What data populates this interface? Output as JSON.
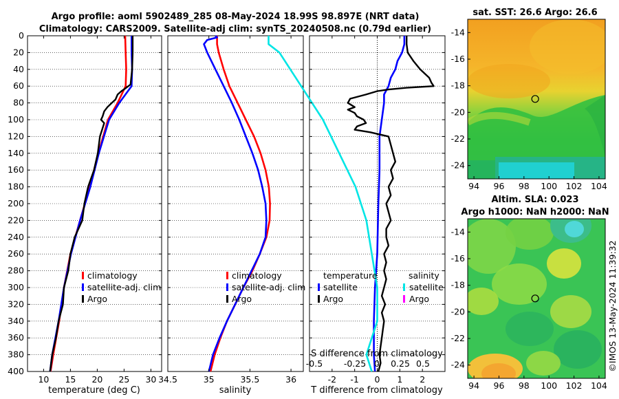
{
  "title": {
    "line1": "Argo profile: aoml 5902489_285 08-May-2024 18.99S 98.897E (NRT data)",
    "line2": "Climatology: CARS2009. Satellite-adj clim: synTS_20240508.nc (0.79d earlier)"
  },
  "colors": {
    "climatology": "#ff0000",
    "satellite": "#0000ff",
    "argo": "#000000",
    "sal_satellite": "#00e5e5",
    "sal_argo": "#ff00ff"
  },
  "chart_data": [
    {
      "type": "line",
      "id": "temperature",
      "xlabel": "temperature (deg C)",
      "xlim": [
        7,
        32
      ],
      "xticks": [
        10,
        15,
        20,
        25,
        30
      ],
      "ylim": [
        0,
        400
      ],
      "yticks": [
        0,
        20,
        40,
        60,
        80,
        100,
        120,
        140,
        160,
        180,
        200,
        220,
        240,
        260,
        280,
        300,
        320,
        340,
        360,
        380,
        400
      ],
      "legend": [
        "climatology",
        "satellite-adj. clim",
        "Argo"
      ],
      "series": [
        {
          "name": "climatology",
          "color": "#ff0000",
          "depth": [
            0,
            20,
            40,
            60,
            80,
            100,
            140,
            180,
            220,
            260,
            300,
            340,
            380,
            400
          ],
          "values": [
            25.2,
            25.3,
            25.4,
            25.3,
            23.8,
            22.0,
            20.2,
            18.6,
            16.8,
            15.0,
            13.8,
            12.9,
            11.8,
            11.3
          ]
        },
        {
          "name": "satellite-adj. clim",
          "color": "#0000ff",
          "depth": [
            0,
            20,
            40,
            60,
            80,
            100,
            140,
            180,
            220,
            260,
            300,
            340,
            380,
            400
          ],
          "values": [
            26.4,
            26.4,
            26.5,
            26.4,
            24.1,
            22.2,
            20.3,
            18.7,
            16.8,
            15.1,
            13.8,
            12.8,
            11.6,
            11.2
          ]
        },
        {
          "name": "Argo",
          "color": "#000000",
          "depth": [
            0,
            20,
            40,
            58,
            62,
            66,
            70,
            76,
            80,
            85,
            90,
            96,
            100,
            104,
            110,
            120,
            140,
            160,
            180,
            200,
            220,
            240,
            260,
            280,
            300,
            320,
            340,
            360,
            380,
            400
          ],
          "values": [
            26.6,
            26.6,
            26.5,
            26.2,
            25.4,
            24.5,
            23.8,
            23.4,
            22.7,
            21.9,
            21.3,
            21.0,
            20.7,
            21.3,
            21.0,
            20.5,
            20.1,
            19.4,
            18.3,
            17.6,
            17.2,
            15.8,
            15.0,
            14.6,
            13.8,
            13.6,
            12.8,
            12.3,
            11.6,
            11.2
          ]
        }
      ]
    },
    {
      "type": "line",
      "id": "salinity",
      "xlabel": "salinity",
      "xlim": [
        34.5,
        36.15
      ],
      "xticks": [
        34.5,
        35,
        35.5,
        36
      ],
      "ylim": [
        0,
        400
      ],
      "legend": [
        "climatology",
        "satellite-adj. clim",
        "Argo"
      ],
      "series": [
        {
          "name": "climatology",
          "color": "#ff0000",
          "depth": [
            0,
            10,
            20,
            40,
            60,
            80,
            100,
            120,
            140,
            160,
            180,
            200,
            220,
            240,
            260,
            280,
            300,
            320,
            340,
            360,
            380,
            400
          ],
          "values": [
            35.1,
            35.1,
            35.12,
            35.18,
            35.25,
            35.35,
            35.45,
            35.55,
            35.63,
            35.69,
            35.73,
            35.745,
            35.74,
            35.7,
            35.62,
            35.53,
            35.42,
            35.32,
            35.22,
            35.14,
            35.07,
            35.02
          ]
        },
        {
          "name": "satellite-adj. clim",
          "color": "#0000ff",
          "depth": [
            0,
            2,
            5,
            10,
            20,
            40,
            60,
            80,
            100,
            120,
            140,
            160,
            180,
            200,
            220,
            240,
            260,
            280,
            300,
            320,
            340,
            360,
            380,
            400
          ],
          "values": [
            35.08,
            35.1,
            34.98,
            34.94,
            34.98,
            35.08,
            35.18,
            35.28,
            35.37,
            35.45,
            35.53,
            35.6,
            35.65,
            35.69,
            35.7,
            35.69,
            35.62,
            35.52,
            35.42,
            35.32,
            35.22,
            35.13,
            35.05,
            35.0
          ]
        }
      ]
    },
    {
      "type": "line",
      "id": "difference",
      "xlabel": "T difference from climatology",
      "xlim": [
        -3,
        3
      ],
      "xticks": [
        -2,
        -1,
        0,
        1,
        2
      ],
      "slabel": "S difference from climatology",
      "sticks": [
        "-0.5",
        "-0.25",
        "0",
        "0.25",
        "0.5"
      ],
      "ylim": [
        0,
        400
      ],
      "legend_temperature": {
        "heading": "temperature",
        "items": [
          "satellite",
          "Argo"
        ]
      },
      "legend_salinity": {
        "heading": "salinity",
        "items": [
          "satellite",
          "Argo"
        ]
      },
      "series": [
        {
          "name": "T satellite",
          "color": "#0000ff",
          "depth": [
            0,
            10,
            20,
            30,
            40,
            50,
            60,
            70,
            80,
            100,
            120,
            140,
            160,
            200,
            260,
            300,
            340,
            380,
            400
          ],
          "values": [
            1.2,
            1.2,
            1.1,
            0.9,
            0.8,
            0.6,
            0.5,
            0.3,
            0.3,
            0.2,
            0.1,
            0.1,
            0.1,
            0.05,
            0.0,
            -0.1,
            -0.15,
            -0.15,
            -0.1
          ]
        },
        {
          "name": "T Argo",
          "color": "#000000",
          "depth": [
            0,
            10,
            20,
            30,
            40,
            50,
            56,
            60,
            62,
            64,
            66,
            70,
            75,
            80,
            85,
            88,
            92,
            96,
            100,
            104,
            108,
            112,
            115,
            120,
            130,
            140,
            150,
            160,
            170,
            180,
            190,
            200,
            210,
            220,
            230,
            240,
            250,
            260,
            270,
            280,
            290,
            300,
            310,
            320,
            330,
            340,
            350,
            360,
            370,
            380,
            390,
            400
          ],
          "values": [
            1.3,
            1.3,
            1.35,
            1.6,
            1.9,
            2.3,
            2.4,
            2.5,
            1.3,
            0.5,
            0.0,
            -0.5,
            -1.2,
            -1.3,
            -1.0,
            -1.3,
            -1.0,
            -0.9,
            -0.6,
            -0.5,
            -0.9,
            -1.0,
            -0.3,
            0.5,
            0.6,
            0.7,
            0.8,
            0.6,
            0.7,
            0.5,
            0.6,
            0.4,
            0.5,
            0.6,
            0.4,
            0.4,
            0.5,
            0.3,
            0.4,
            0.3,
            0.4,
            0.3,
            0.2,
            0.35,
            0.2,
            0.3,
            0.25,
            0.2,
            0.15,
            0.1,
            0.15,
            0.05
          ]
        },
        {
          "name": "S satellite",
          "color": "#00e5e5",
          "depth": [
            0,
            5,
            10,
            20,
            40,
            60,
            80,
            100,
            140,
            180,
            220,
            260,
            300,
            340,
            380,
            400
          ],
          "values": [
            -1.0,
            -1.0,
            -1.0,
            -0.9,
            -0.8,
            -0.7,
            -0.6,
            -0.5,
            -0.35,
            -0.2,
            -0.1,
            -0.05,
            0.0,
            0.0,
            -0.1,
            -0.05
          ]
        }
      ]
    },
    {
      "type": "heatmap",
      "id": "sst_map",
      "title": "sat. SST: 26.6 Argo: 26.6",
      "xticks": [
        94,
        96,
        98,
        100,
        102,
        104
      ],
      "yticks": [
        -14,
        -16,
        -18,
        -20,
        -22,
        -24
      ],
      "xlim": [
        93.5,
        104.5
      ],
      "ylim": [
        -25,
        -13
      ],
      "marker": [
        98.897,
        -18.99
      ]
    },
    {
      "type": "heatmap",
      "id": "sla_map",
      "title1": "Altim. SLA: 0.023",
      "title2": "Argo h1000: NaN h2000: NaN",
      "xticks": [
        94,
        96,
        98,
        100,
        102,
        104
      ],
      "yticks": [
        -14,
        -16,
        -18,
        -20,
        -22,
        -24
      ],
      "xlim": [
        93.5,
        104.5
      ],
      "ylim": [
        -25,
        -13
      ],
      "marker": [
        98.897,
        -18.99
      ]
    }
  ],
  "footer": "©IMOS 13-May-2024 11:39:32"
}
